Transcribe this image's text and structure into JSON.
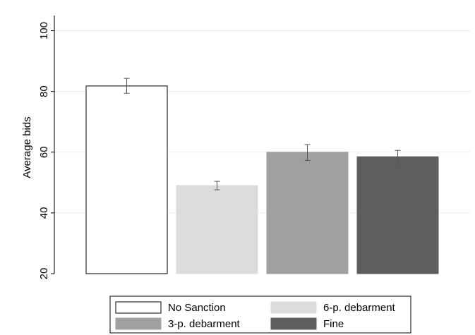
{
  "chart_data": {
    "type": "bar",
    "title": "",
    "xlabel": "",
    "ylabel": "Average bids",
    "ylim": [
      20,
      105
    ],
    "yticks": [
      20,
      40,
      60,
      80,
      100
    ],
    "grid": true,
    "legend_position": "bottom",
    "series": [
      {
        "name": "No Sanction",
        "value": 81.8,
        "ci_low": 79.4,
        "ci_high": 84.3,
        "color": "#ffffff"
      },
      {
        "name": "6-p. debarment",
        "value": 49.0,
        "ci_low": 47.6,
        "ci_high": 50.4,
        "color": "#dcdcdc"
      },
      {
        "name": "3-p. debarment",
        "value": 60.0,
        "ci_low": 57.3,
        "ci_high": 62.5,
        "color": "#a0a0a0"
      },
      {
        "name": "Fine",
        "value": 58.5,
        "ci_low": 56.2,
        "ci_high": 60.6,
        "color": "#5e5e5e"
      }
    ],
    "legend_order": [
      "No Sanction",
      "6-p. debarment",
      "3-p. debarment",
      "Fine"
    ]
  }
}
